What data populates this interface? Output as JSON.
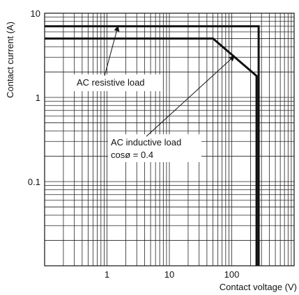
{
  "chart_data": {
    "type": "line",
    "xscale": "log",
    "yscale": "log",
    "xlim": [
      0.1,
      1000
    ],
    "ylim": [
      0.01,
      10
    ],
    "xlabel": "Contact voltage (V)",
    "ylabel": "Contact current (A)",
    "xticks": [
      {
        "value": 1,
        "label": "1"
      },
      {
        "value": 10,
        "label": "10"
      },
      {
        "value": 100,
        "label": "100"
      }
    ],
    "yticks": [
      {
        "value": 0.1,
        "label": "0.1"
      },
      {
        "value": 1,
        "label": "1"
      },
      {
        "value": 10,
        "label": "10"
      }
    ],
    "grid": true,
    "series": [
      {
        "id": "resistive",
        "x": [
          0.1,
          270,
          270
        ],
        "y": [
          7,
          7,
          0.01
        ]
      },
      {
        "id": "inductive",
        "x": [
          0.1,
          50,
          250,
          250
        ],
        "y": [
          5,
          5,
          1.8,
          0.01
        ]
      }
    ],
    "annotations": [
      {
        "id": "resistive",
        "lines": [
          "AC resistive load"
        ],
        "pointer_x": 1.5,
        "pointer_y": 7
      },
      {
        "id": "inductive",
        "lines": [
          "AC inductive load",
          "cosø = 0.4"
        ],
        "pointer_x": 110,
        "pointer_y": 3.1
      }
    ]
  }
}
